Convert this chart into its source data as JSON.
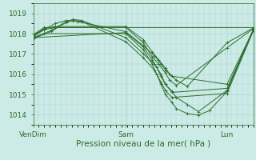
{
  "bg_color": "#cceae6",
  "grid_color": "#aad4d0",
  "line_color": "#2d6e2d",
  "xlabel": "Pression niveau de la mer( hPa )",
  "xlabel_fontsize": 7.5,
  "tick_fontsize": 6.5,
  "ylim": [
    1013.5,
    1019.5
  ],
  "yticks": [
    1014,
    1015,
    1016,
    1017,
    1018,
    1019
  ],
  "xtick_labels": [
    "VenDim",
    "Sam",
    "Lun"
  ],
  "xtick_positions": [
    0.0,
    0.42,
    0.88
  ],
  "series": [
    {
      "x": [
        0.0,
        0.08,
        0.15,
        0.18,
        0.22,
        0.42,
        0.5,
        0.55,
        0.58,
        0.6,
        0.63,
        0.88,
        1.0
      ],
      "y": [
        1017.75,
        1018.1,
        1018.55,
        1018.65,
        1018.6,
        1017.6,
        1016.8,
        1016.2,
        1015.6,
        1015.2,
        1014.85,
        1015.05,
        1018.15
      ]
    },
    {
      "x": [
        0.0,
        0.08,
        0.15,
        0.18,
        0.22,
        0.42,
        0.5,
        0.55,
        0.58,
        0.6,
        0.63,
        0.88,
        1.0
      ],
      "y": [
        1017.8,
        1018.15,
        1018.6,
        1018.7,
        1018.65,
        1017.8,
        1017.0,
        1016.5,
        1016.0,
        1015.5,
        1015.1,
        1015.3,
        1018.2
      ]
    },
    {
      "x": [
        0.0,
        0.05,
        0.1,
        0.15,
        0.2,
        0.42,
        0.5,
        0.55,
        0.58,
        0.6,
        0.63,
        0.88,
        1.0
      ],
      "y": [
        1017.85,
        1018.2,
        1018.5,
        1018.65,
        1018.6,
        1018.1,
        1017.4,
        1016.9,
        1016.5,
        1016.2,
        1015.9,
        1015.5,
        1018.2
      ]
    },
    {
      "x": [
        0.0,
        0.05,
        0.1,
        0.42,
        0.5,
        0.54,
        0.57,
        0.6,
        0.62,
        0.65,
        0.88,
        1.0
      ],
      "y": [
        1017.9,
        1018.2,
        1018.3,
        1018.3,
        1017.55,
        1016.85,
        1016.5,
        1016.05,
        1015.7,
        1015.45,
        1017.3,
        1018.25
      ]
    },
    {
      "x": [
        0.0,
        0.05,
        0.1,
        0.42,
        0.5,
        0.54,
        0.57,
        0.6,
        0.62,
        0.65,
        0.7,
        0.88,
        1.0
      ],
      "y": [
        1017.92,
        1018.25,
        1018.35,
        1018.35,
        1017.7,
        1017.1,
        1016.7,
        1016.3,
        1016.0,
        1015.7,
        1015.4,
        1017.55,
        1018.28
      ]
    },
    {
      "x": [
        0.0,
        0.05,
        1.0
      ],
      "y": [
        1017.95,
        1018.3,
        1018.3
      ]
    },
    {
      "x": [
        0.0,
        0.42,
        0.5,
        0.54,
        0.56,
        0.58,
        0.6,
        0.63,
        0.65,
        0.7,
        0.75,
        0.88,
        1.0
      ],
      "y": [
        1017.8,
        1018.05,
        1017.35,
        1016.7,
        1016.35,
        1015.9,
        1015.5,
        1015.15,
        1014.85,
        1014.5,
        1014.15,
        1015.2,
        1018.2
      ]
    },
    {
      "x": [
        0.0,
        0.05,
        0.42,
        0.5,
        0.54,
        0.56,
        0.58,
        0.6,
        0.63,
        0.65,
        0.7,
        0.75,
        0.8,
        0.88,
        1.0
      ],
      "y": [
        1017.78,
        1018.0,
        1018.0,
        1017.2,
        1016.5,
        1016.0,
        1015.5,
        1015.0,
        1014.6,
        1014.3,
        1014.05,
        1013.98,
        1014.2,
        1015.15,
        1018.2
      ]
    }
  ]
}
